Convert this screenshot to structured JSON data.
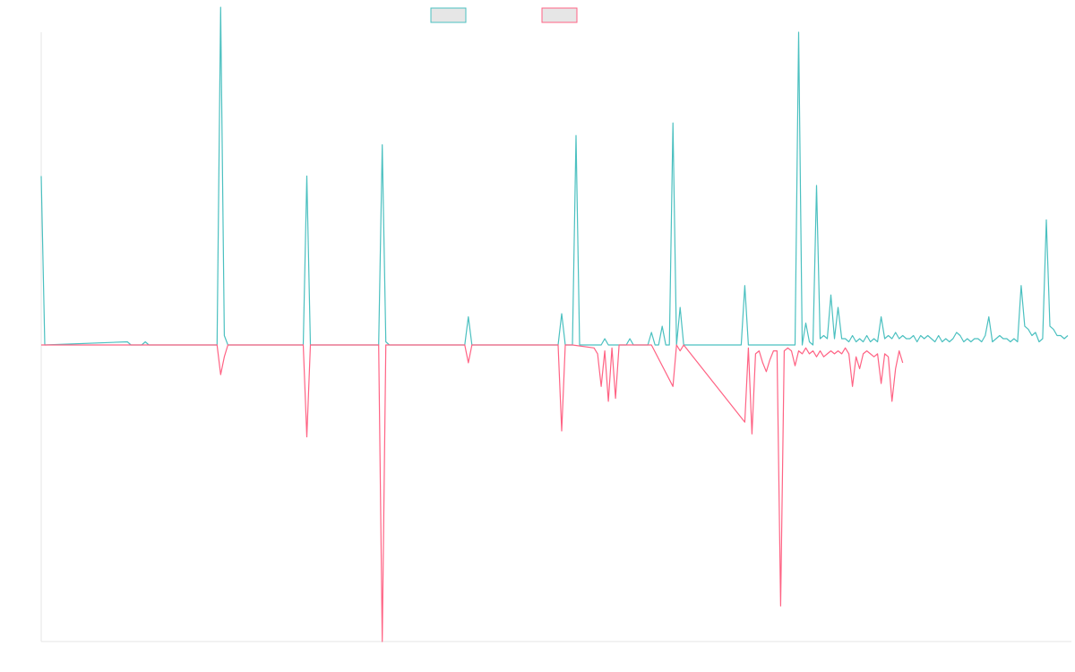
{
  "chart_data": {
    "type": "line",
    "title": "",
    "xlabel": "",
    "ylabel": "",
    "grid": false,
    "legend": {
      "position": "top-center"
    },
    "x_count": 240,
    "ylim": [
      -100,
      100
    ],
    "series": [
      {
        "name": "",
        "color": "#4bc0c0",
        "points": [
          [
            0,
            54
          ],
          [
            1,
            0
          ],
          [
            24,
            1
          ],
          [
            25,
            0
          ],
          [
            27,
            0
          ],
          [
            28,
            0
          ],
          [
            29,
            1
          ],
          [
            30,
            0
          ],
          [
            49,
            0
          ],
          [
            50,
            108
          ],
          [
            51,
            3
          ],
          [
            52,
            0
          ],
          [
            73,
            0
          ],
          [
            74,
            54
          ],
          [
            75,
            0
          ],
          [
            94,
            0
          ],
          [
            95,
            64
          ],
          [
            96,
            1
          ],
          [
            97,
            0
          ],
          [
            118,
            0
          ],
          [
            119,
            9
          ],
          [
            120,
            0
          ],
          [
            121,
            0
          ],
          [
            144,
            0
          ],
          [
            145,
            10
          ],
          [
            146,
            0
          ],
          [
            148,
            0
          ],
          [
            149,
            67
          ],
          [
            150,
            0
          ],
          [
            151,
            0
          ],
          [
            152,
            0
          ],
          [
            153,
            0
          ],
          [
            154,
            0
          ],
          [
            155,
            0
          ],
          [
            156,
            0
          ],
          [
            157,
            2
          ],
          [
            158,
            0
          ],
          [
            159,
            0
          ],
          [
            160,
            0
          ],
          [
            161,
            0
          ],
          [
            162,
            0
          ],
          [
            163,
            0
          ],
          [
            164,
            2
          ],
          [
            165,
            0
          ],
          [
            166,
            0
          ],
          [
            167,
            0
          ],
          [
            168,
            0
          ],
          [
            169,
            0
          ],
          [
            170,
            4
          ],
          [
            171,
            0
          ],
          [
            172,
            0
          ],
          [
            173,
            6
          ],
          [
            174,
            0
          ],
          [
            175,
            0
          ],
          [
            176,
            71
          ],
          [
            177,
            0
          ],
          [
            178,
            12
          ],
          [
            179,
            0
          ],
          [
            180,
            0
          ],
          [
            181,
            0
          ],
          [
            182,
            0
          ],
          [
            183,
            0
          ],
          [
            184,
            0
          ],
          [
            185,
            0
          ],
          [
            186,
            0
          ],
          [
            187,
            0
          ],
          [
            188,
            0
          ],
          [
            189,
            0
          ],
          [
            190,
            0
          ],
          [
            191,
            0
          ],
          [
            192,
            0
          ],
          [
            193,
            0
          ],
          [
            194,
            0
          ],
          [
            195,
            0
          ],
          [
            196,
            19
          ],
          [
            197,
            0
          ],
          [
            198,
            0
          ],
          [
            199,
            0
          ],
          [
            200,
            0
          ],
          [
            201,
            0
          ],
          [
            202,
            0
          ],
          [
            203,
            0
          ],
          [
            204,
            0
          ],
          [
            205,
            0
          ],
          [
            206,
            0
          ],
          [
            207,
            0
          ],
          [
            208,
            0
          ],
          [
            209,
            0
          ],
          [
            210,
            0
          ],
          [
            211,
            100
          ],
          [
            212,
            0
          ],
          [
            213,
            7
          ],
          [
            214,
            1
          ],
          [
            215,
            0
          ],
          [
            216,
            51
          ],
          [
            217,
            2
          ],
          [
            218,
            3
          ],
          [
            219,
            2
          ],
          [
            220,
            16
          ],
          [
            221,
            2
          ],
          [
            222,
            12
          ],
          [
            223,
            2
          ],
          [
            224,
            2
          ],
          [
            225,
            1
          ],
          [
            226,
            3
          ],
          [
            227,
            1
          ],
          [
            228,
            2
          ],
          [
            229,
            1
          ],
          [
            230,
            3
          ],
          [
            231,
            1
          ],
          [
            232,
            2
          ],
          [
            233,
            1
          ],
          [
            234,
            9
          ],
          [
            235,
            2
          ],
          [
            236,
            3
          ],
          [
            237,
            2
          ],
          [
            238,
            4
          ],
          [
            239,
            2
          ],
          [
            240,
            3
          ],
          [
            241,
            2
          ],
          [
            242,
            2
          ],
          [
            243,
            3
          ],
          [
            244,
            1
          ],
          [
            245,
            3
          ],
          [
            246,
            2
          ],
          [
            247,
            3
          ],
          [
            248,
            2
          ],
          [
            249,
            1
          ],
          [
            250,
            3
          ],
          [
            251,
            1
          ],
          [
            252,
            2
          ],
          [
            253,
            1
          ],
          [
            254,
            2
          ],
          [
            255,
            4
          ],
          [
            256,
            3
          ],
          [
            257,
            1
          ],
          [
            258,
            2
          ],
          [
            259,
            1
          ],
          [
            260,
            2
          ],
          [
            261,
            2
          ],
          [
            262,
            1
          ],
          [
            263,
            3
          ],
          [
            264,
            9
          ],
          [
            265,
            1
          ],
          [
            266,
            2
          ],
          [
            267,
            3
          ],
          [
            268,
            2
          ],
          [
            269,
            2
          ],
          [
            270,
            1
          ],
          [
            271,
            2
          ],
          [
            272,
            1
          ],
          [
            273,
            19
          ],
          [
            274,
            6
          ],
          [
            275,
            5
          ],
          [
            276,
            3
          ],
          [
            277,
            4
          ],
          [
            278,
            1
          ],
          [
            279,
            2
          ],
          [
            280,
            40
          ],
          [
            281,
            6
          ],
          [
            282,
            5
          ],
          [
            283,
            3
          ],
          [
            284,
            3
          ],
          [
            285,
            2
          ],
          [
            286,
            3
          ]
        ]
      },
      {
        "name": "",
        "color": "#ff6384",
        "points": [
          [
            0,
            0
          ],
          [
            24,
            0
          ],
          [
            25,
            0
          ],
          [
            26,
            0
          ],
          [
            27,
            0
          ],
          [
            28,
            0
          ],
          [
            29,
            0
          ],
          [
            49,
            0
          ],
          [
            50,
            -10
          ],
          [
            51,
            -4
          ],
          [
            52,
            0
          ],
          [
            73,
            0
          ],
          [
            74,
            -31
          ],
          [
            75,
            0
          ],
          [
            94,
            0
          ],
          [
            95,
            -100
          ],
          [
            96,
            0
          ],
          [
            118,
            0
          ],
          [
            119,
            -6
          ],
          [
            120,
            0
          ],
          [
            121,
            0
          ],
          [
            144,
            0
          ],
          [
            145,
            -29
          ],
          [
            146,
            0
          ],
          [
            147,
            0
          ],
          [
            148,
            0
          ],
          [
            154,
            -1
          ],
          [
            155,
            -3
          ],
          [
            156,
            -14
          ],
          [
            157,
            -2
          ],
          [
            158,
            -19
          ],
          [
            159,
            -1
          ],
          [
            160,
            -18
          ],
          [
            161,
            0
          ],
          [
            162,
            0
          ],
          [
            169,
            0
          ],
          [
            170,
            0
          ],
          [
            176,
            -14
          ],
          [
            177,
            0
          ],
          [
            178,
            -2
          ],
          [
            179,
            0
          ],
          [
            196,
            -26
          ],
          [
            197,
            -1
          ],
          [
            198,
            -30
          ],
          [
            199,
            -3
          ],
          [
            200,
            -2
          ],
          [
            201,
            -6
          ],
          [
            202,
            -9
          ],
          [
            203,
            -5
          ],
          [
            204,
            -2
          ],
          [
            205,
            -2
          ],
          [
            206,
            -88
          ],
          [
            207,
            -2
          ],
          [
            208,
            -1
          ],
          [
            209,
            -2
          ],
          [
            210,
            -7
          ],
          [
            211,
            -2
          ],
          [
            212,
            -3
          ],
          [
            213,
            -1
          ],
          [
            214,
            -3
          ],
          [
            215,
            -2
          ],
          [
            216,
            -4
          ],
          [
            217,
            -2
          ],
          [
            218,
            -4
          ],
          [
            219,
            -3
          ],
          [
            220,
            -2
          ],
          [
            221,
            -3
          ],
          [
            222,
            -2
          ],
          [
            223,
            -3
          ],
          [
            224,
            -1
          ],
          [
            225,
            -3
          ],
          [
            226,
            -14
          ],
          [
            227,
            -4
          ],
          [
            228,
            -8
          ],
          [
            229,
            -3
          ],
          [
            230,
            -2
          ],
          [
            231,
            -3
          ],
          [
            232,
            -4
          ],
          [
            233,
            -3
          ],
          [
            234,
            -13
          ],
          [
            235,
            -3
          ],
          [
            236,
            -4
          ],
          [
            237,
            -19
          ],
          [
            238,
            -8
          ],
          [
            239,
            -2
          ],
          [
            240,
            -6
          ]
        ]
      }
    ]
  }
}
